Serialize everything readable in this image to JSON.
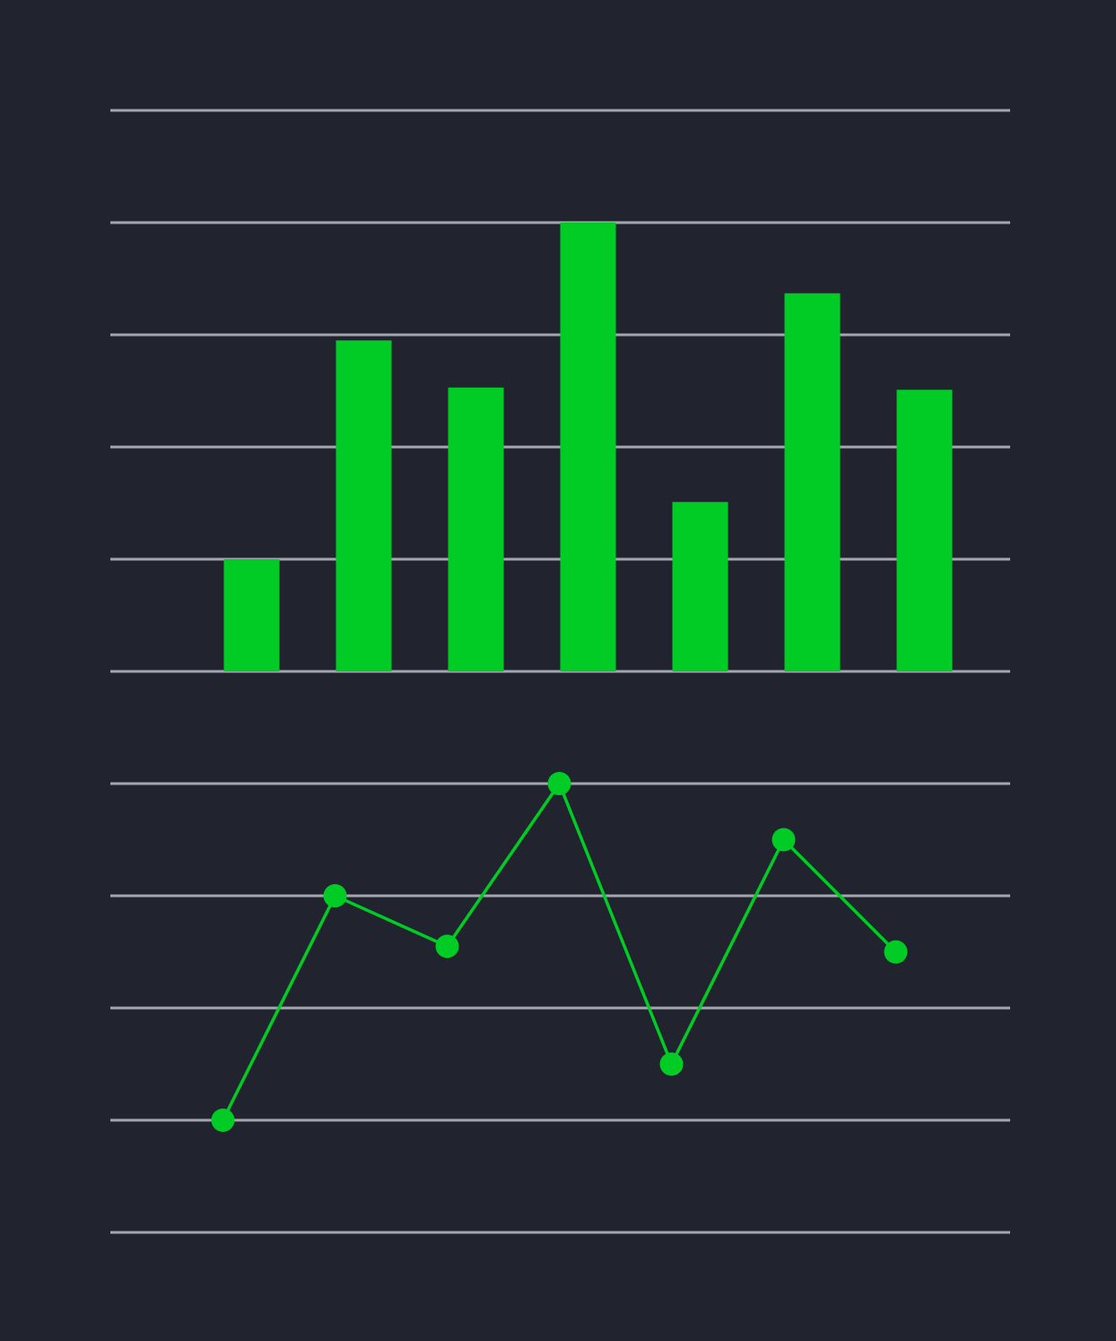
{
  "colors": {
    "background": "#21242e",
    "gridline": "#a3a5b0",
    "series": "#00cc25"
  },
  "chart_data": [
    {
      "type": "bar",
      "grid": true,
      "ylim": [
        0,
        5
      ],
      "categories": [
        "",
        "",
        "",
        "",
        "",
        "",
        ""
      ],
      "values": [
        1.0,
        2.95,
        2.53,
        4.0,
        1.51,
        3.37,
        2.51
      ]
    },
    {
      "type": "line",
      "grid": true,
      "markers": true,
      "ylim": [
        0,
        4
      ],
      "categories": [
        "",
        "",
        "",
        "",
        "",
        "",
        ""
      ],
      "values": [
        1.0,
        3.0,
        2.55,
        4.0,
        1.5,
        3.5,
        2.5
      ]
    }
  ]
}
